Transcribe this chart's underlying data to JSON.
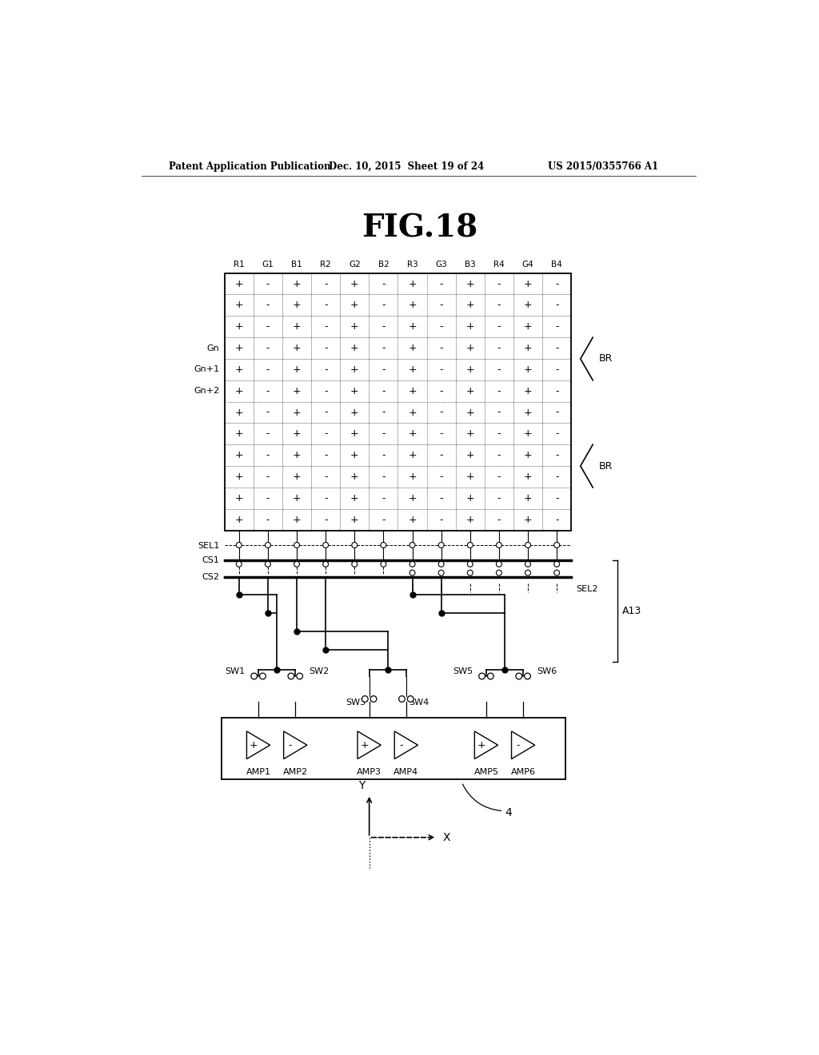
{
  "title": "FIG.18",
  "header_left": "Patent Application Publication",
  "header_mid": "Dec. 10, 2015  Sheet 19 of 24",
  "header_right": "US 2015/0355766 A1",
  "col_labels": [
    "R1",
    "G1",
    "B1",
    "R2",
    "G2",
    "B2",
    "R3",
    "G3",
    "B3",
    "R4",
    "G4",
    "B4"
  ],
  "n_cols": 12,
  "n_rows": 12,
  "background": "#ffffff",
  "grid_color": "#666666",
  "line_color": "#000000",
  "row_label_indices": [
    3,
    4,
    5
  ],
  "row_labels": [
    "Gn",
    "Gn+1",
    "Gn+2"
  ],
  "br_bracket_1": [
    3,
    5
  ],
  "br_bracket_2": [
    8,
    10
  ]
}
